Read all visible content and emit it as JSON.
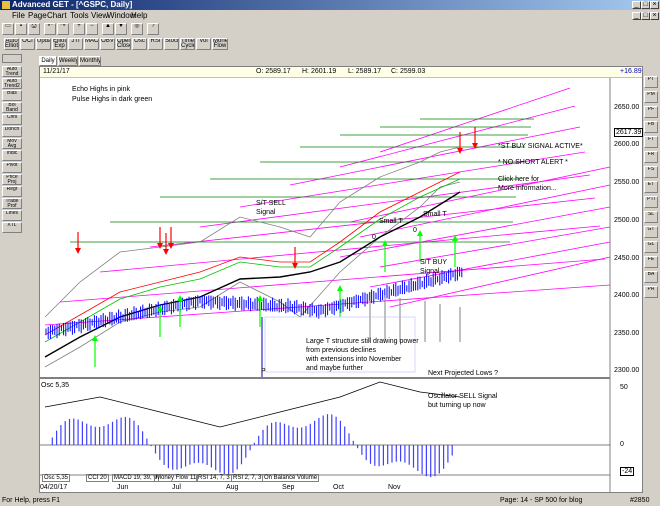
{
  "window": {
    "title": "Advanced GET - [^GSPC, Daily]"
  },
  "menu": [
    "File",
    "Page",
    "Chart",
    "Tools",
    "View",
    "Window",
    "Help"
  ],
  "toolbar_row1": [
    "Open",
    "Save",
    "Print",
    "Undo",
    "Redo",
    "Zoom In",
    "Zoom Out",
    "Up",
    "Down",
    "Find",
    "Help"
  ],
  "toolbar_row2": [
    "Auto Elliott",
    "OCI",
    "Update",
    "Elliott Exp",
    "JTI",
    "MACD",
    "OBV",
    "Open Close",
    "Osc",
    "RSI",
    "Stock",
    "Time Cycles",
    "Vol",
    "Money Flow"
  ],
  "tabs": [
    "Daily",
    "Weekly",
    "Monthly"
  ],
  "left_tools": [
    "Auto Trend",
    "Auto Trend2",
    "Bias",
    "Bol Band",
    "Chnl",
    "Donch",
    "Mov Avg",
    "Indic",
    "Pivot",
    "Price Proj",
    "Regr",
    "Trade Prof",
    "Lines",
    "XTL"
  ],
  "right_tools": [
    "PT",
    "PM",
    "PF",
    "FB",
    "FT",
    "FR",
    "FS",
    "ET",
    "PTI",
    "SL",
    "GT",
    "GL",
    "FE",
    "BA",
    "PR"
  ],
  "header": {
    "date": "11/21/17",
    "open": "O: 2589.17",
    "high": "H: 2601.19",
    "low": "L: 2589.17",
    "close": "C: 2599.03",
    "change": "+16.89"
  },
  "annotations": {
    "legend1": "Echo Highs in pink",
    "legend2": "Pulse Highs in dark green",
    "st_sell": "S/T SELL",
    "signal1": "Signal",
    "st_buy_active": "*ST BUY SIGNAL ACTIVE*",
    "no_short": "* NO SHORT ALERT *",
    "click_here": "Click here for",
    "more_info": "More Information...",
    "small_t1": "Small  T",
    "small_t2": "Small T",
    "zero1": "0",
    "zero2": "0",
    "st_buy": "S/T BUY",
    "signal2": "Signal",
    "large_t1": "Large T structure still drawing power",
    "large_t2": "from previous declines",
    "large_t3": "with extensions into November",
    "large_t4": "and maybe further",
    "p_label": "P",
    "next_lows": "Next Projected Lows ?",
    "osc_sell1": "Oscillator SELL Signal",
    "osc_sell2": "but turning up now"
  },
  "price_axis": {
    "ticks": [
      "2650.00",
      "2600.00",
      "2550.00",
      "2500.00",
      "2450.00",
      "2400.00",
      "2350.00",
      "2300.00"
    ],
    "current": "2617.39"
  },
  "osc_panel": {
    "label": "Osc 5,35",
    "axis_top": "50",
    "axis_mid": "0",
    "axis_bottom": "-24"
  },
  "indicator_tabs": [
    "Osc 5,35",
    "CCI 20",
    "MACD 19, 39, 9",
    "Money Flow 11",
    "RSI 14, 7, 3",
    "RSI 2, 7, 3",
    "On Balance Volume"
  ],
  "date_axis": [
    "04/20/17",
    "Jun",
    "Jul",
    "Aug",
    "Sep",
    "Oct",
    "Nov"
  ],
  "status": {
    "left": "For Help, press F1",
    "right": "Page: 14 - SP 500 for blog",
    "number": "#2850"
  },
  "colors": {
    "candle_up": "#0000ff",
    "echo_high": "#ff00ff",
    "pulse_high": "#008000",
    "sell_arrow": "#ff0000",
    "buy_arrow": "#00ff00",
    "ma": "#000000"
  }
}
